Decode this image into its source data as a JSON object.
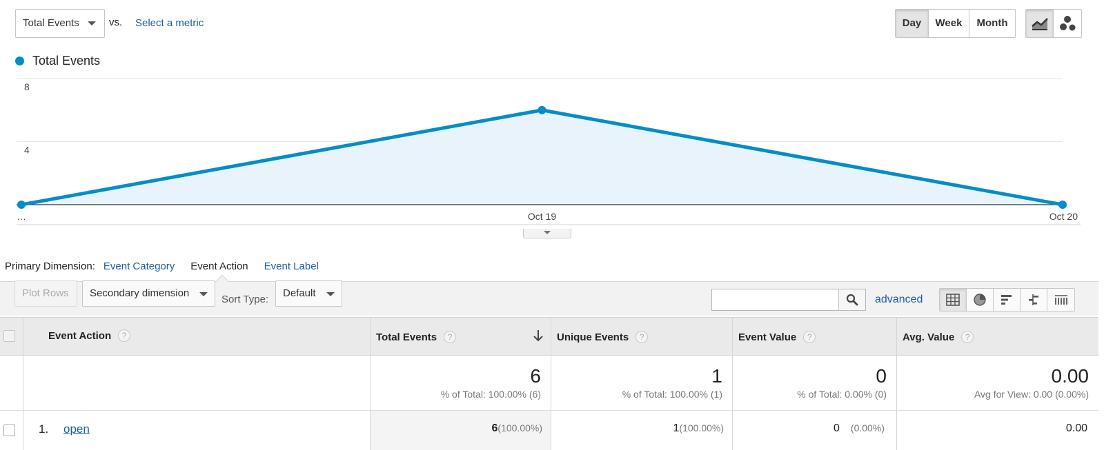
{
  "metric_selector": {
    "value": "Total Events",
    "vs_label": "vs.",
    "select_metric_link": "Select a metric"
  },
  "period_buttons": [
    {
      "label": "Day",
      "active": true
    },
    {
      "label": "Week",
      "active": false
    },
    {
      "label": "Month",
      "active": false
    }
  ],
  "chart_type_buttons": [
    {
      "icon": "line-chart-icon",
      "active": true
    },
    {
      "icon": "motion-chart-icon",
      "active": false
    }
  ],
  "legend": {
    "label": "Total Events",
    "color": "#058dc7"
  },
  "chart_data": {
    "type": "area",
    "categories": [
      "…",
      "Oct 19",
      "Oct 20"
    ],
    "series": [
      {
        "name": "Total Events",
        "values": [
          0,
          6,
          0
        ],
        "color": "#058dc7"
      }
    ],
    "yticks": [
      4,
      8
    ],
    "ylim": [
      0,
      8
    ],
    "grid": true
  },
  "primary_dimension": {
    "label": "Primary Dimension:",
    "options": [
      {
        "label": "Event Category",
        "active": false
      },
      {
        "label": "Event Action",
        "active": true
      },
      {
        "label": "Event Label",
        "active": false
      }
    ]
  },
  "toolbar": {
    "plot_rows": "Plot Rows",
    "secondary_dimension": "Secondary dimension",
    "sort_type_label": "Sort Type:",
    "sort_type_value": "Default",
    "search_placeholder": "",
    "advanced_link": "advanced",
    "view_buttons": [
      "table-view-icon",
      "pie-view-icon",
      "performance-view-icon",
      "comparison-view-icon",
      "pivot-view-icon"
    ]
  },
  "table": {
    "columns": [
      {
        "label": "Event Action"
      },
      {
        "label": "Total Events"
      },
      {
        "label": "Unique Events"
      },
      {
        "label": "Event Value"
      },
      {
        "label": "Avg. Value"
      }
    ],
    "totals": [
      {
        "value": "6",
        "sub": "% of Total: 100.00% (6)"
      },
      {
        "value": "1",
        "sub": "% of Total: 100.00% (1)"
      },
      {
        "value": "0",
        "sub": "% of Total: 0.00% (0)"
      },
      {
        "value": "0.00",
        "sub": "Avg for View: 0.00 (0.00%)"
      }
    ],
    "rows": [
      {
        "index": "1.",
        "event_action": "open",
        "total_events": "6",
        "total_events_pct": "(100.00%)",
        "unique_events": "1",
        "unique_events_pct": "(100.00%)",
        "event_value": "0",
        "event_value_pct": "(0.00%)",
        "avg_value": "0.00"
      }
    ]
  }
}
